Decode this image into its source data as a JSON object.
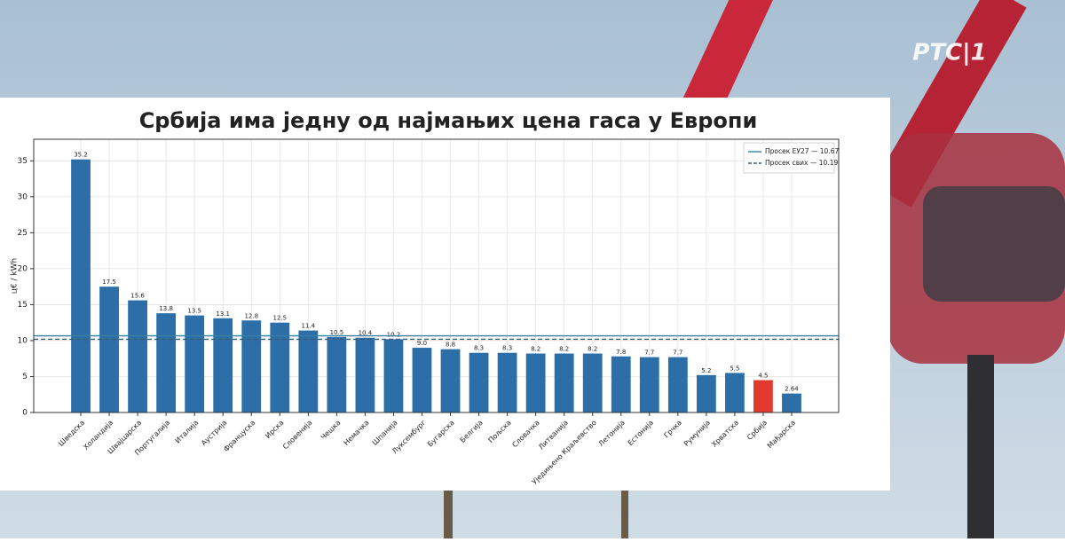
{
  "channel_logo": "РТС|1",
  "chart_data": {
    "type": "bar",
    "title": "Србија има једну од најмањих цена гаса у Европи",
    "y_label": "ц€ / kWh",
    "categories": [
      "Шведска",
      "Холандија",
      "Швајцарска",
      "Португалија",
      "Италија",
      "Аустрија",
      "Француска",
      "Ирска",
      "Словенија",
      "Чешка",
      "Немачка",
      "Шпанија",
      "Луксембург",
      "Бугарска",
      "Белгија",
      "Пољска",
      "Словачка",
      "Литванија",
      "Уједињено Краљевство",
      "Летонија",
      "Естонија",
      "Грчка",
      "Румунија",
      "Хрватска",
      "Србија",
      "Мађарска"
    ],
    "values": [
      35.2,
      17.5,
      15.6,
      13.8,
      13.5,
      13.1,
      12.8,
      12.5,
      11.4,
      10.5,
      10.4,
      10.2,
      9.0,
      8.8,
      8.3,
      8.3,
      8.2,
      8.2,
      8.2,
      7.8,
      7.7,
      7.7,
      5.2,
      5.5,
      4.5,
      2.64
    ],
    "value_labels": [
      "35.2",
      "17.5",
      "15.6",
      "13.8",
      "13.5",
      "13.1",
      "12.8",
      "12.5",
      "11.4",
      "10.5",
      "10.4",
      "10.2",
      "9.0",
      "8.8",
      "8.3",
      "8.3",
      "8.2",
      "8.2",
      "8.2",
      "7.8",
      "7.7",
      "7.7",
      "5.2",
      "5.5",
      "4.5",
      "2.64"
    ],
    "colors": [
      "#2b6ea8",
      "#2b6ea8",
      "#2b6ea8",
      "#2b6ea8",
      "#2b6ea8",
      "#2b6ea8",
      "#2b6ea8",
      "#2b6ea8",
      "#2b6ea8",
      "#2b6ea8",
      "#2b6ea8",
      "#2b6ea8",
      "#2b6ea8",
      "#2b6ea8",
      "#2b6ea8",
      "#2b6ea8",
      "#2b6ea8",
      "#2b6ea8",
      "#2b6ea8",
      "#2b6ea8",
      "#2b6ea8",
      "#2b6ea8",
      "#2b6ea8",
      "#2b6ea8",
      "#e23a2e",
      "#2b6ea8"
    ],
    "reference_lines": [
      {
        "name": "Просек ЕУ27 — 10.67",
        "value": 10.67,
        "style": "solid",
        "color": "#3a7fa0"
      },
      {
        "name": "Просек свих — 10.19",
        "value": 10.19,
        "style": "dashed",
        "color": "#3b5f7a"
      }
    ],
    "ylim": [
      0,
      38
    ],
    "yticks": [
      0,
      5,
      10,
      15,
      20,
      25,
      30,
      35
    ],
    "grid": true,
    "legend": "upper right"
  }
}
